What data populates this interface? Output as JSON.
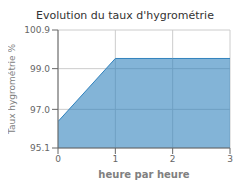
{
  "chart_data": {
    "type": "area",
    "title": "Evolution du taux d'hygrométrie",
    "xlabel": "heure par heure",
    "ylabel": "Taux hygrométrie %",
    "x": [
      0,
      1,
      2,
      3
    ],
    "values": [
      96.4,
      99.5,
      99.5,
      99.5
    ],
    "xlim": [
      0,
      3
    ],
    "ylim": [
      95.1,
      100.9
    ],
    "xticks": [
      0,
      1,
      2,
      3
    ],
    "yticks": [
      95.1,
      {
        "value": 97.0,
        "label": "97.0"
      },
      {
        "value": 99.0,
        "label": "99.0"
      },
      100.9
    ],
    "grid": true
  }
}
